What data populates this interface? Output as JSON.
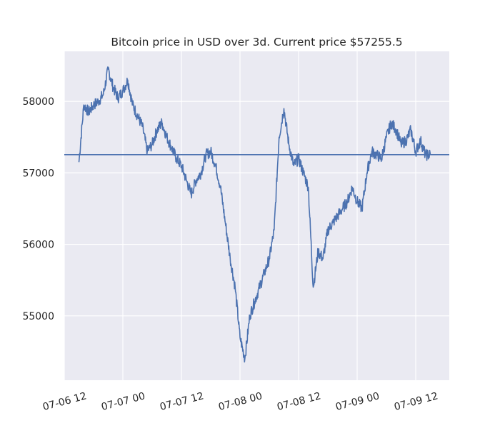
{
  "chart_data": {
    "type": "line",
    "title": "Bitcoin price in USD over 3d. Current price $57255.5",
    "xlabel": "",
    "ylabel": "",
    "x_ticks": [
      "07-06 12",
      "07-07 00",
      "07-07 12",
      "07-08 00",
      "07-08 12",
      "07-09 00",
      "07-09 12"
    ],
    "y_ticks": [
      55000,
      56000,
      57000,
      58000
    ],
    "ylim": [
      54100,
      58700
    ],
    "grid": true,
    "background": "#eaeaf2",
    "line_color": "#4c72b0",
    "current_price": 57255.5,
    "series": [
      {
        "x": [
          "07-06 15:00",
          "07-06 16:00",
          "07-06 17:00",
          "07-06 18:00",
          "07-06 19:00",
          "07-06 20:00",
          "07-06 21:00",
          "07-06 22:00",
          "07-06 23:00",
          "07-07 00:00",
          "07-07 01:00",
          "07-07 02:00",
          "07-07 03:00",
          "07-07 04:00",
          "07-07 05:00",
          "07-07 06:00",
          "07-07 07:00",
          "07-07 08:00",
          "07-07 09:00",
          "07-07 10:00",
          "07-07 11:00",
          "07-07 12:00",
          "07-07 13:00",
          "07-07 14:00",
          "07-07 15:00",
          "07-07 16:00",
          "07-07 17:00",
          "07-07 18:00",
          "07-07 19:00",
          "07-07 20:00",
          "07-07 21:00",
          "07-07 22:00",
          "07-07 23:00",
          "07-08 00:00",
          "07-08 01:00",
          "07-08 02:00",
          "07-08 03:00",
          "07-08 04:00",
          "07-08 05:00",
          "07-08 06:00",
          "07-08 07:00",
          "07-08 08:00",
          "07-08 09:00",
          "07-08 10:00",
          "07-08 11:00",
          "07-08 12:00",
          "07-08 13:00",
          "07-08 14:00",
          "07-08 15:00",
          "07-08 16:00",
          "07-08 17:00",
          "07-08 18:00",
          "07-08 19:00",
          "07-08 20:00",
          "07-08 21:00",
          "07-08 22:00",
          "07-08 23:00",
          "07-09 00:00",
          "07-09 01:00",
          "07-09 02:00",
          "07-09 03:00",
          "07-09 04:00",
          "07-09 05:00",
          "07-09 06:00",
          "07-09 07:00",
          "07-09 08:00",
          "07-09 09:00",
          "07-09 10:00",
          "07-09 11:00",
          "07-09 12:00",
          "07-09 13:00",
          "07-09 14:00",
          "07-09 15:00"
        ],
        "values": [
          57150,
          57950,
          57850,
          57950,
          58000,
          58100,
          58450,
          58200,
          58050,
          58150,
          58300,
          57950,
          57800,
          57650,
          57300,
          57400,
          57600,
          57700,
          57500,
          57350,
          57200,
          57100,
          56900,
          56700,
          56900,
          57000,
          57250,
          57300,
          57100,
          56800,
          56300,
          55800,
          55400,
          54700,
          54400,
          55000,
          55200,
          55400,
          55600,
          55800,
          56200,
          57500,
          57900,
          57400,
          57100,
          57200,
          57000,
          56800,
          55400,
          55900,
          55800,
          56200,
          56300,
          56400,
          56500,
          56600,
          56800,
          56600,
          56500,
          57000,
          57300,
          57250,
          57200,
          57500,
          57700,
          57600,
          57400,
          57450,
          57600,
          57300,
          57450,
          57250,
          57255.5
        ]
      }
    ]
  }
}
